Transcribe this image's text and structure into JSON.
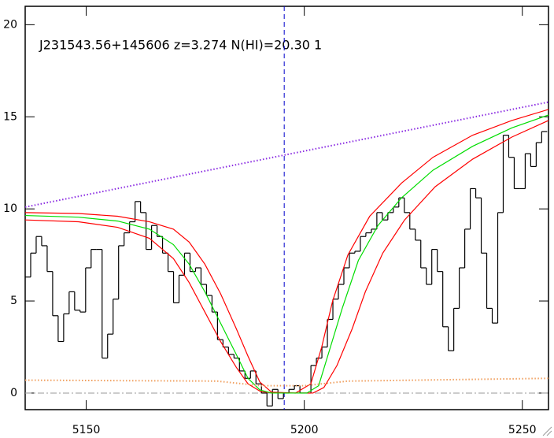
{
  "chart_data": {
    "type": "line",
    "title": "J231543.56+145606 z=3.274 N(HI)=20.30 1",
    "xlim": [
      5136,
      5256
    ],
    "ylim": [
      -0.9,
      21
    ],
    "xticks": [
      5150,
      5200,
      5250
    ],
    "yticks": [
      0,
      5,
      10,
      15,
      20
    ],
    "hlines": [
      {
        "y": 0,
        "color": "#999999",
        "style": "dashdot"
      }
    ],
    "vlines": [
      {
        "x": 5195.4,
        "color": "#0000cc",
        "style": "dashed"
      }
    ],
    "series": [
      {
        "color": "#000000",
        "style": "steps",
        "x": [
          5136,
          5137.26,
          5138.52,
          5139.78,
          5141.04,
          5142.3,
          5143.56,
          5144.82,
          5146.08,
          5147.34,
          5148.6,
          5149.86,
          5151.12,
          5152.38,
          5153.64,
          5154.9,
          5156.16,
          5157.42,
          5158.68,
          5159.94,
          5161.2,
          5162.46,
          5163.72,
          5164.98,
          5166.24,
          5167.5,
          5168.76,
          5170.02,
          5171.28,
          5172.54,
          5173.8,
          5175.06,
          5176.32,
          5177.58,
          5178.84,
          5180.1,
          5181.36,
          5182.62,
          5183.88,
          5185.14,
          5186.4,
          5187.66,
          5188.92,
          5190.18,
          5191.44,
          5192.7,
          5193.96,
          5195.22,
          5196.48,
          5197.74,
          5199,
          5200.26,
          5201.52,
          5202.78,
          5204.04,
          5205.3,
          5206.56,
          5207.82,
          5209.08,
          5210.34,
          5211.6,
          5212.86,
          5214.12,
          5215.38,
          5216.64,
          5217.9,
          5219.16,
          5220.42,
          5221.68,
          5222.94,
          5224.2,
          5225.46,
          5226.72,
          5227.98,
          5229.24,
          5230.5,
          5231.76,
          5233.02,
          5234.28,
          5235.54,
          5236.8,
          5238.06,
          5239.32,
          5240.58,
          5241.84,
          5243.1,
          5244.36,
          5245.62,
          5246.88,
          5248.14,
          5249.4,
          5250.66,
          5251.92,
          5253.18,
          5254.44
        ],
        "values": [
          6.3,
          7.6,
          8.5,
          8.0,
          6.6,
          4.2,
          2.8,
          4.3,
          5.5,
          4.5,
          4.4,
          6.8,
          7.8,
          7.8,
          1.9,
          3.2,
          5.1,
          8.0,
          8.7,
          9.3,
          10.4,
          9.8,
          7.8,
          9.1,
          8.5,
          7.6,
          6.6,
          4.9,
          6.4,
          7.6,
          6.6,
          6.8,
          5.9,
          5.3,
          4.4,
          2.9,
          2.5,
          2.1,
          1.9,
          1.2,
          0.8,
          1.2,
          0.5,
          0,
          -0.7,
          0.2,
          -0.3,
          0,
          0.2,
          0.4,
          0,
          0,
          1.5,
          1.9,
          2.5,
          4.0,
          5.1,
          5.9,
          6.8,
          7.6,
          7.7,
          8.5,
          8.7,
          8.9,
          9.8,
          9.4,
          9.8,
          10.1,
          10.6,
          9.8,
          8.9,
          8.3,
          6.8,
          5.9,
          7.8,
          6.6,
          3.6,
          2.3,
          4.6,
          6.8,
          8.9,
          11.1,
          10.6,
          7.6,
          4.6,
          3.8,
          9.8,
          14.0,
          12.8,
          11.1,
          11.1,
          13.0,
          12.3,
          13.6,
          14.2
        ]
      },
      {
        "color": "#ff0000",
        "style": "solid",
        "x": [
          5136,
          5148.2,
          5157.2,
          5164.5,
          5170,
          5173.6,
          5177.2,
          5180.8,
          5184.4,
          5187.1,
          5189.8,
          5192.5,
          5198,
          5201.5,
          5204,
          5206.5,
          5210,
          5215,
          5222.3,
          5229.5,
          5238.6,
          5247.6,
          5256
        ],
        "values": [
          9.8,
          9.75,
          9.6,
          9.3,
          8.9,
          8.2,
          7.0,
          5.4,
          3.5,
          2.0,
          0.6,
          0.05,
          0,
          0.5,
          2.5,
          5.0,
          7.5,
          9.6,
          11.4,
          12.8,
          14.0,
          14.8,
          15.4
        ]
      },
      {
        "color": "#ff0000",
        "style": "solid",
        "x": [
          5136,
          5148.2,
          5157.2,
          5164.5,
          5170,
          5173.6,
          5177.2,
          5180.8,
          5184.4,
          5187.1,
          5190,
          5193,
          5202,
          5204.5,
          5207.5,
          5211,
          5214,
          5218,
          5223,
          5230,
          5238.6,
          5247.6,
          5256
        ],
        "values": [
          9.4,
          9.3,
          9.0,
          8.4,
          7.3,
          6.0,
          4.4,
          2.8,
          1.4,
          0.5,
          0.08,
          0,
          0,
          0.3,
          1.5,
          3.5,
          5.5,
          7.6,
          9.4,
          11.2,
          12.7,
          13.9,
          14.8
        ]
      },
      {
        "color": "#00dd00",
        "style": "solid",
        "x": [
          5136,
          5148.2,
          5157.2,
          5164.5,
          5170,
          5173.6,
          5177.2,
          5180.8,
          5184.4,
          5187.1,
          5189.8,
          5192.5,
          5200.6,
          5203.3,
          5206,
          5208.7,
          5212.4,
          5216.9,
          5222.3,
          5229.5,
          5238.6,
          5247.6,
          5256
        ],
        "values": [
          9.64,
          9.55,
          9.34,
          8.9,
          8.06,
          7.0,
          5.5,
          3.8,
          2.1,
          0.8,
          0.17,
          0,
          0,
          0.4,
          2.5,
          4.6,
          7.2,
          9.1,
          10.6,
          12.1,
          13.4,
          14.4,
          15.1
        ]
      },
      {
        "color": "#8a2be2",
        "style": "dotted",
        "x": [
          5136,
          5256
        ],
        "values": [
          10.1,
          15.8
        ]
      },
      {
        "color": "#f0a060",
        "style": "dotted",
        "x": [
          5136,
          5180,
          5190,
          5200,
          5210,
          5256
        ],
        "values": [
          0.7,
          0.65,
          0.4,
          0.4,
          0.65,
          0.8
        ]
      }
    ]
  }
}
